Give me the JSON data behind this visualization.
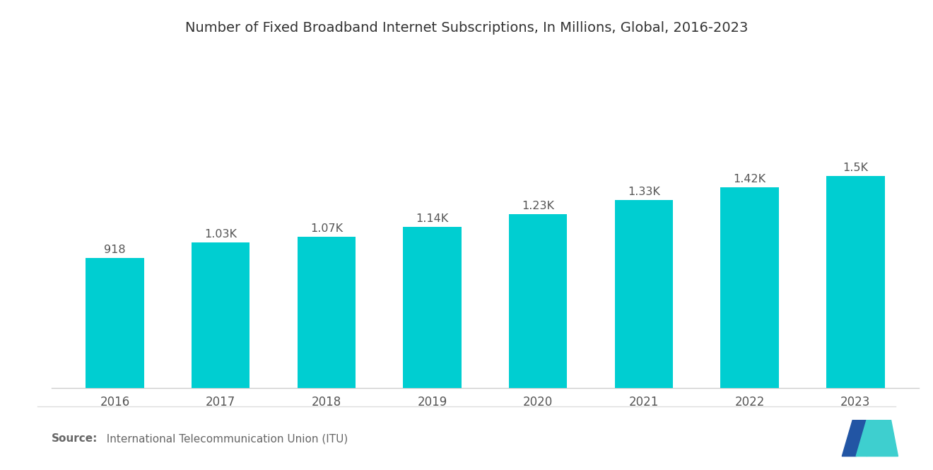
{
  "title": "Number of Fixed Broadband Internet Subscriptions, In Millions, Global, 2016-2023",
  "years": [
    2016,
    2017,
    2018,
    2019,
    2020,
    2021,
    2022,
    2023
  ],
  "values": [
    918,
    1030,
    1070,
    1140,
    1230,
    1330,
    1420,
    1500
  ],
  "bar_labels": [
    "918",
    "1.03K",
    "1.07K",
    "1.14K",
    "1.23K",
    "1.33K",
    "1.42K",
    "1.5K"
  ],
  "bar_color": "#00CED1",
  "background_color": "#ffffff",
  "title_fontsize": 14,
  "label_fontsize": 11.5,
  "tick_fontsize": 12,
  "source_bold": "Source:",
  "source_text": "  International Telecommunication Union (ITU)",
  "source_fontsize": 11,
  "ylim": [
    0,
    2000
  ],
  "bar_width": 0.55
}
